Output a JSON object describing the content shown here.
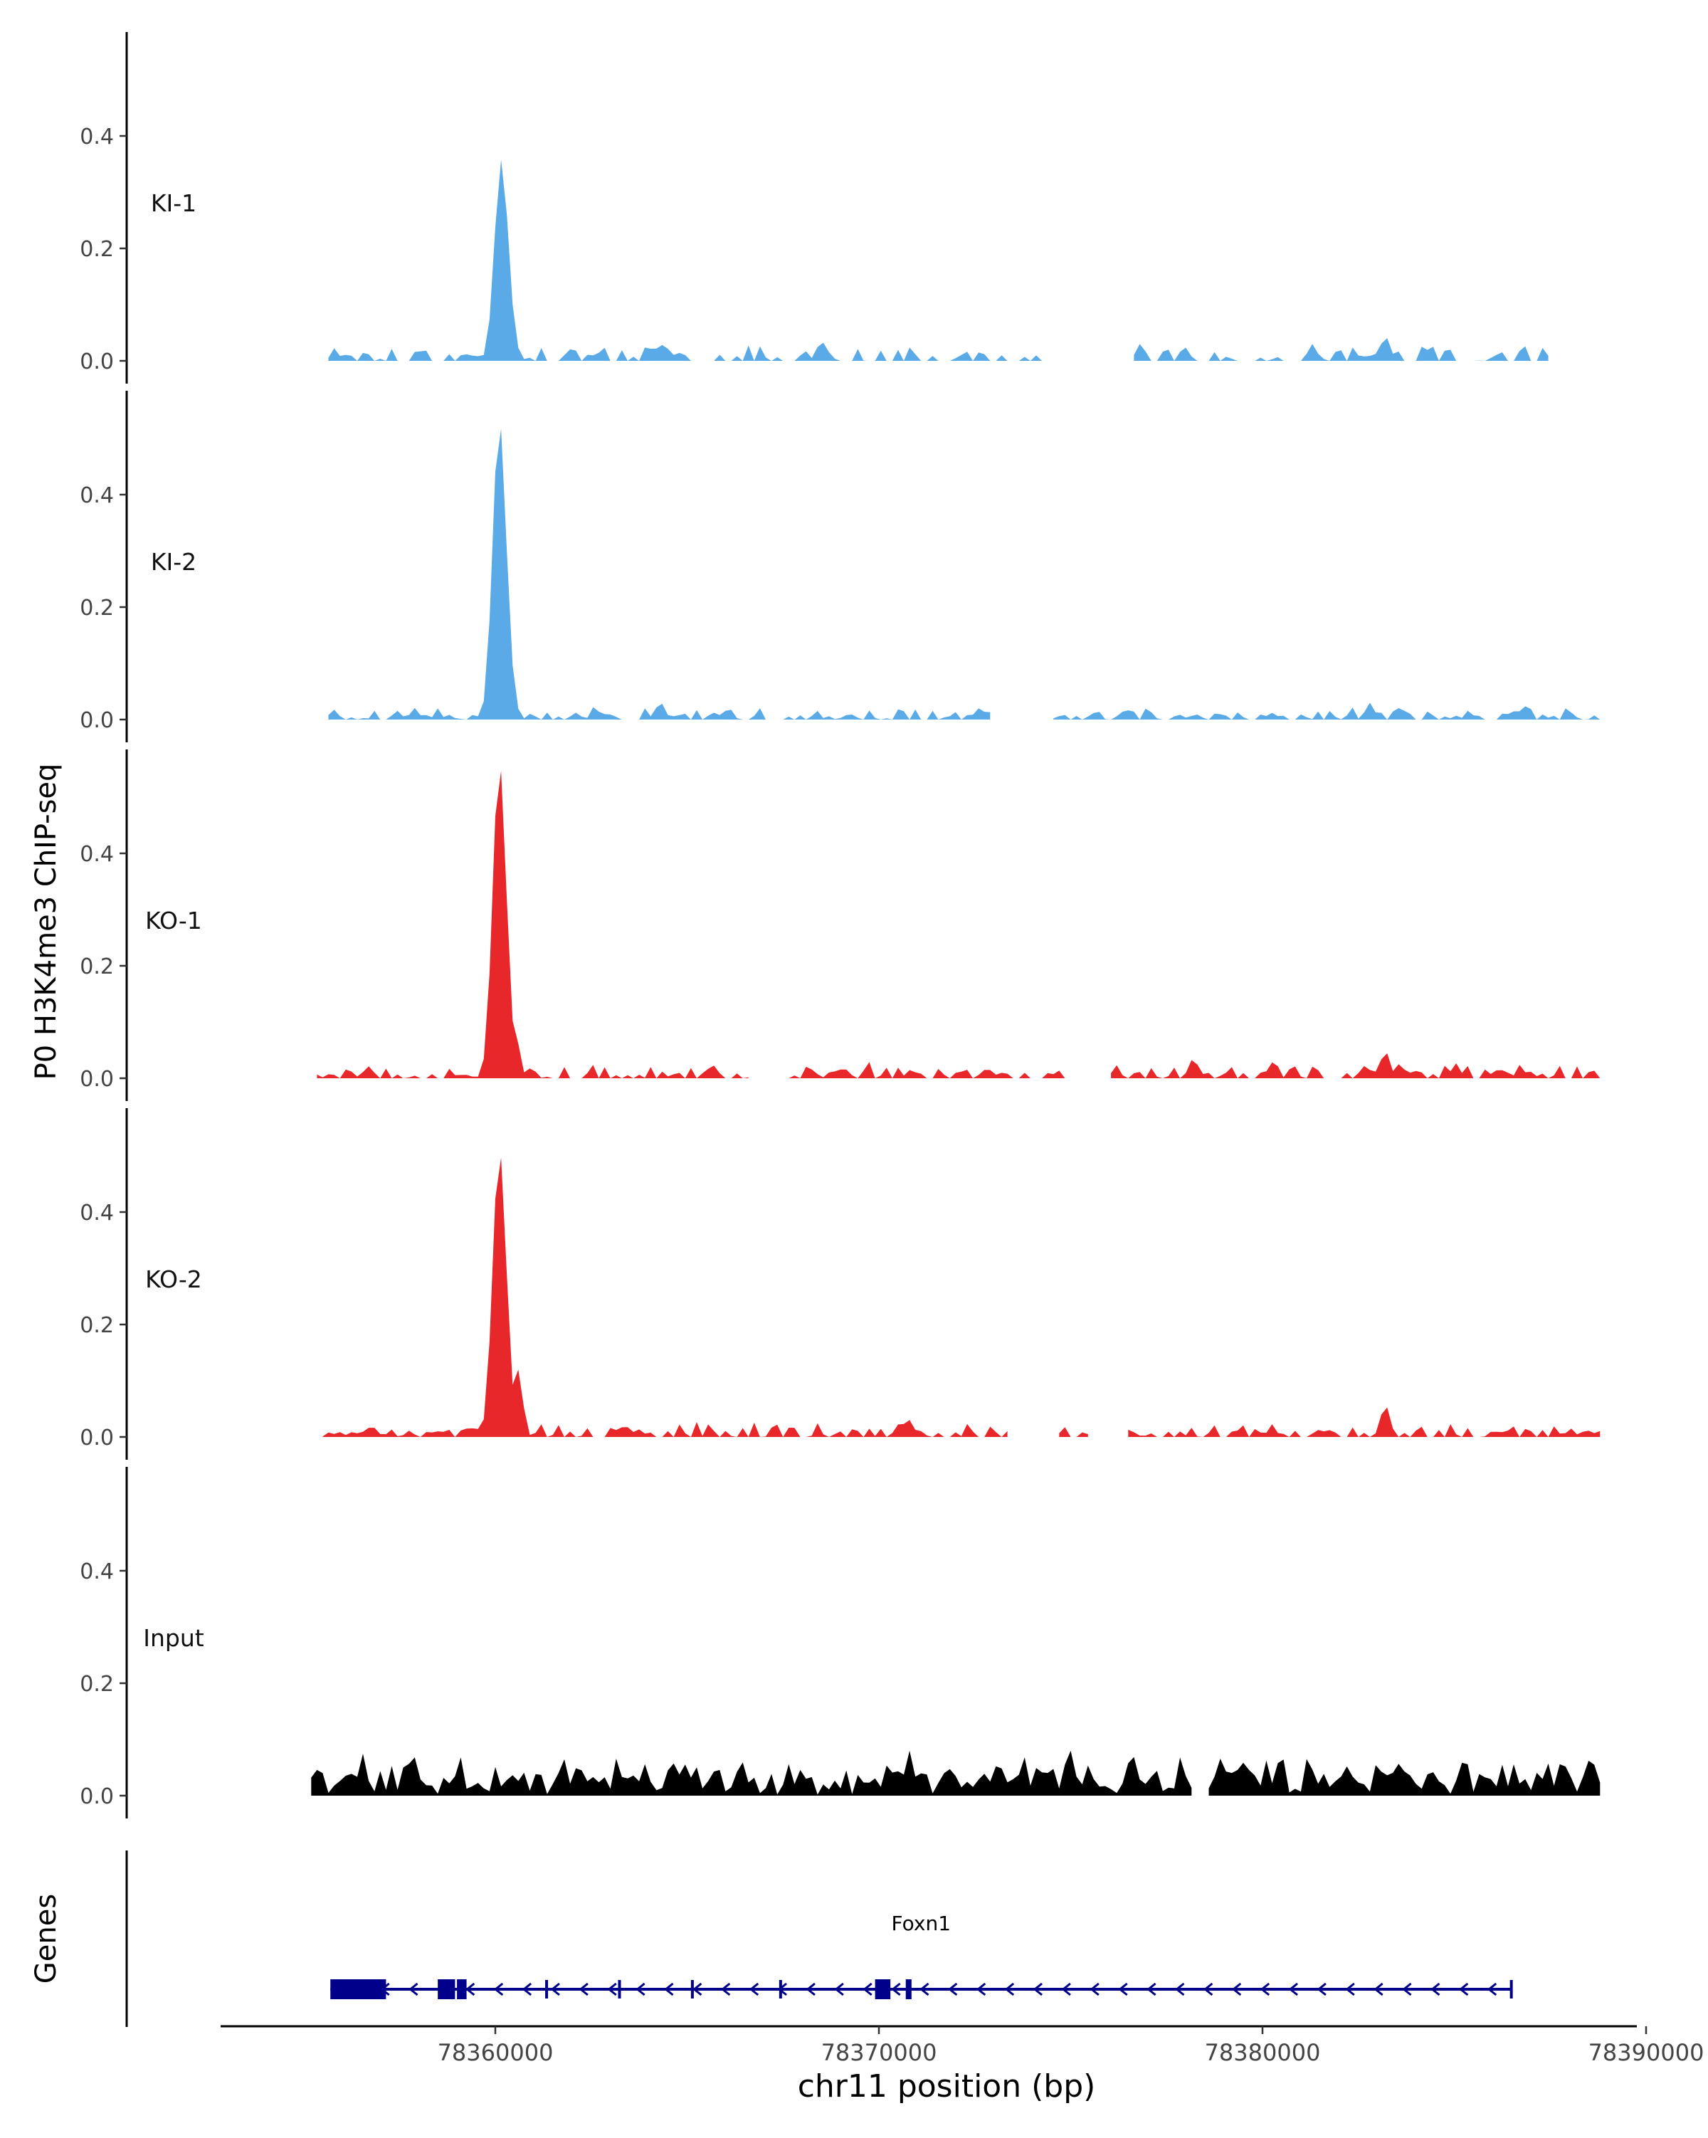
{
  "chart_data": {
    "type": "area",
    "ylabel": "P0 H3K4me3 ChIP-seq",
    "xlabel": "chr11 position (bp)",
    "genes_label": "Genes",
    "xlim": [
      78353000,
      78390500
    ],
    "ylim": [
      0,
      0.56
    ],
    "yticks": [
      0.0,
      0.2,
      0.4
    ],
    "ytick_labels": [
      "0.0",
      "0.2",
      "0.4"
    ],
    "xticks": [
      78360000,
      78370000,
      78380000,
      78390000
    ],
    "xtick_labels": [
      "78360000",
      "78370000",
      "78380000",
      "78390000"
    ],
    "colors": {
      "KI": "#5aaae8",
      "KO": "#e8272a",
      "Input": "#000000",
      "gene": "#00008b",
      "axis": "#000000"
    },
    "tracks": [
      {
        "name": "KI-1",
        "color": "#5aaae8",
        "peak": {
          "center": 78360150,
          "height": 0.35,
          "width": 170
        },
        "noise": {
          "base": 0.012,
          "amp": 0.02,
          "density": 0.55
        },
        "highlights": [
          [
            78383200,
            0.05
          ],
          [
            78381300,
            0.03
          ],
          [
            78364400,
            0.035
          ],
          [
            78368500,
            0.04
          ],
          [
            78388600,
            0.03
          ]
        ],
        "gaps": [
          [
            78353000,
            78355600
          ],
          [
            78374400,
            78376600
          ],
          [
            78387500,
            78390500
          ]
        ],
        "seed": 11
      },
      {
        "name": "KI-2",
        "color": "#5aaae8",
        "peak": {
          "center": 78360100,
          "height": 0.52,
          "width": 170
        },
        "noise": {
          "base": 0.008,
          "amp": 0.018,
          "density": 0.7
        },
        "highlights": [
          [
            78364300,
            0.035
          ],
          [
            78382800,
            0.03
          ],
          [
            78383600,
            0.025
          ],
          [
            78372600,
            0.02
          ]
        ],
        "gaps": [
          [
            78353000,
            78355500
          ],
          [
            78373000,
            78374400
          ]
        ],
        "seed": 23
      },
      {
        "name": "KO-1",
        "color": "#e8272a",
        "peak": {
          "center": 78360100,
          "height": 0.55,
          "width": 170
        },
        "noise": {
          "base": 0.01,
          "amp": 0.02,
          "density": 0.72
        },
        "highlights": [
          [
            78383200,
            0.055
          ],
          [
            78378200,
            0.04
          ],
          [
            78380300,
            0.035
          ],
          [
            78360500,
            0.1
          ]
        ],
        "gaps": [
          [
            78353000,
            78355200
          ],
          [
            78366700,
            78367500
          ],
          [
            78375000,
            78376000
          ]
        ],
        "seed": 37
      },
      {
        "name": "KO-2",
        "color": "#e8272a",
        "peak": {
          "center": 78360100,
          "height": 0.5,
          "width": 170
        },
        "noise": {
          "base": 0.01,
          "amp": 0.018,
          "density": 0.72
        },
        "highlights": [
          [
            78383200,
            0.065
          ],
          [
            78370800,
            0.03
          ],
          [
            78360600,
            0.12
          ]
        ],
        "gaps": [
          [
            78353000,
            78355400
          ],
          [
            78373500,
            78374600
          ],
          [
            78375600,
            78376400
          ]
        ],
        "seed": 53
      },
      {
        "name": "Input",
        "color": "#000000",
        "peak": null,
        "noise": {
          "base": 0.035,
          "amp": 0.045,
          "density": 1.0
        },
        "highlights": [
          [
            78376600,
            0.085
          ],
          [
            78375000,
            0.08
          ],
          [
            78370800,
            0.08
          ],
          [
            78383600,
            0.07
          ]
        ],
        "gaps": [
          [
            78353000,
            78354800
          ],
          [
            78378200,
            78378500
          ]
        ],
        "seed": 71
      }
    ],
    "gene": {
      "name": "Foxn1",
      "start": 78355700,
      "end": 78386500,
      "strand": "-",
      "exons": [
        [
          78355700,
          78357150,
          "thick"
        ],
        [
          78358500,
          78358950,
          "thick"
        ],
        [
          78359000,
          78359250,
          "thick"
        ],
        [
          78361300,
          78361370,
          "thin"
        ],
        [
          78363200,
          78363270,
          "thin"
        ],
        [
          78365100,
          78365170,
          "thin"
        ],
        [
          78367400,
          78367470,
          "thin"
        ],
        [
          78369900,
          78370300,
          "thick"
        ],
        [
          78370700,
          78370850,
          "thick"
        ],
        [
          78386450,
          78386500,
          "thin"
        ]
      ]
    }
  }
}
